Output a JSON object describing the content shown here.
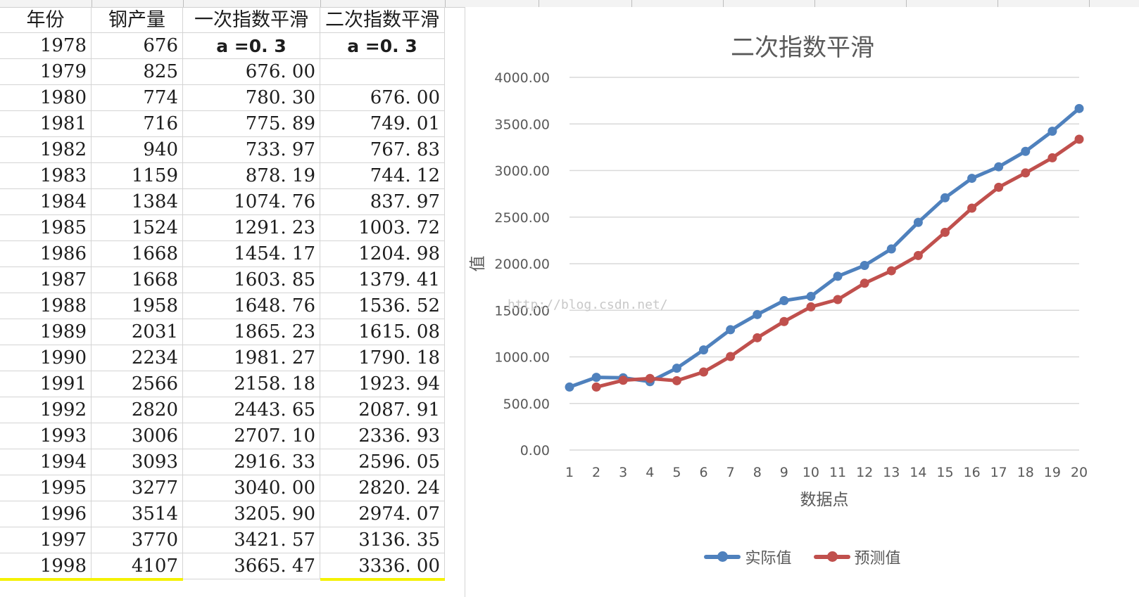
{
  "table": {
    "headers": [
      "年份",
      "钢产量",
      "一次指数平滑",
      "二次指数平滑"
    ],
    "alpha_row": {
      "year": "1978",
      "value": "676",
      "s1": "a =0. 3",
      "s2": "a =0. 3"
    },
    "rows": [
      [
        "1979",
        "825",
        "676. 00",
        ""
      ],
      [
        "1980",
        "774",
        "780. 30",
        "676. 00"
      ],
      [
        "1981",
        "716",
        "775. 89",
        "749. 01"
      ],
      [
        "1982",
        "940",
        "733. 97",
        "767. 83"
      ],
      [
        "1983",
        "1159",
        "878. 19",
        "744. 12"
      ],
      [
        "1984",
        "1384",
        "1074. 76",
        "837. 97"
      ],
      [
        "1985",
        "1524",
        "1291. 23",
        "1003. 72"
      ],
      [
        "1986",
        "1668",
        "1454. 17",
        "1204. 98"
      ],
      [
        "1987",
        "1668",
        "1603. 85",
        "1379. 41"
      ],
      [
        "1988",
        "1958",
        "1648. 76",
        "1536. 52"
      ],
      [
        "1989",
        "2031",
        "1865. 23",
        "1615. 08"
      ],
      [
        "1990",
        "2234",
        "1981. 27",
        "1790. 18"
      ],
      [
        "1991",
        "2566",
        "2158. 18",
        "1923. 94"
      ],
      [
        "1992",
        "2820",
        "2443. 65",
        "2087. 91"
      ],
      [
        "1993",
        "3006",
        "2707. 10",
        "2336. 93"
      ],
      [
        "1994",
        "3093",
        "2916. 33",
        "2596. 05"
      ],
      [
        "1995",
        "3277",
        "3040. 00",
        "2820. 24"
      ],
      [
        "1996",
        "3514",
        "3205. 90",
        "2974. 07"
      ],
      [
        "1997",
        "3770",
        "3421. 57",
        "3136. 35"
      ],
      [
        "1998",
        "4107",
        "3665. 47",
        "3336. 00"
      ]
    ]
  },
  "watermark": "http://blog.csdn.net/",
  "colors": {
    "actual": "#4f81bd",
    "forecast": "#c0504d",
    "grid": "#d9d9d9",
    "text": "#595959"
  },
  "chart_data": {
    "type": "line",
    "title": "二次指数平滑",
    "xlabel": "数据点",
    "ylabel": "值",
    "x": [
      1,
      2,
      3,
      4,
      5,
      6,
      7,
      8,
      9,
      10,
      11,
      12,
      13,
      14,
      15,
      16,
      17,
      18,
      19,
      20
    ],
    "ylim": [
      0,
      4000
    ],
    "yticks": [
      "0.00",
      "500.00",
      "1000.00",
      "1500.00",
      "2000.00",
      "2500.00",
      "3000.00",
      "3500.00",
      "4000.00"
    ],
    "grid": true,
    "legend": "bottom",
    "series": [
      {
        "name": "实际值",
        "values": [
          676,
          780.3,
          775.89,
          733.97,
          878.19,
          1074.76,
          1291.23,
          1454.17,
          1603.85,
          1648.76,
          1865.23,
          1981.27,
          2158.18,
          2443.65,
          2707.1,
          2916.33,
          3040.0,
          3205.9,
          3421.57,
          3665.47
        ]
      },
      {
        "name": "预测值",
        "values": [
          null,
          676.0,
          749.01,
          767.83,
          744.12,
          837.97,
          1003.72,
          1204.98,
          1379.41,
          1536.52,
          1615.08,
          1790.18,
          1923.94,
          2087.91,
          2336.93,
          2596.05,
          2820.24,
          2974.07,
          3136.35,
          3336.0
        ]
      }
    ]
  }
}
